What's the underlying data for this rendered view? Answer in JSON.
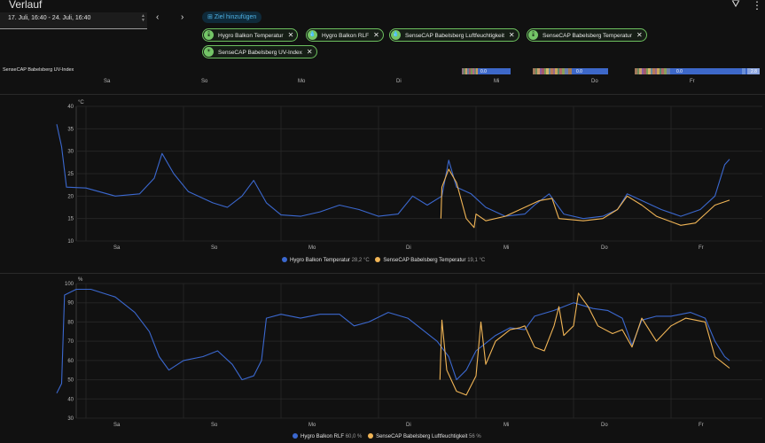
{
  "app": {
    "title": "Verlauf"
  },
  "date_range": "17. Juli, 16:40 - 24. Juli, 16:40",
  "add_target_label": "Ziel hinzufügen",
  "chips": [
    "Hygro Balkon Temperatur",
    "Hygro Balkon RLF",
    "SenseCAP Babelsberg Luftfeuchtigkeit",
    "SenseCAP Babelsberg Temperatur",
    "SenseCAP Babelsberg UV-Index"
  ],
  "uv": {
    "label": "SenseCAP Babelsberg UV-Index",
    "value_labels": [
      "0.0",
      "0.0",
      "0.0",
      "2.8"
    ]
  },
  "days": [
    "Sa",
    "So",
    "Mo",
    "Di",
    "Mi",
    "Do",
    "Fr"
  ],
  "colors": {
    "blue": "#3b68cf",
    "orange": "#f1b556",
    "chip_green": "#74c567"
  },
  "chart_data": [
    {
      "type": "line",
      "yunit": "°C",
      "ylim": [
        10,
        40
      ],
      "yticks": [
        10,
        15,
        20,
        25,
        30,
        35,
        40
      ],
      "x": [
        "Sa",
        "So",
        "Mo",
        "Di",
        "Mi",
        "Do",
        "Fr"
      ],
      "xrange_days": [
        -0.1,
        6.6
      ],
      "series": [
        {
          "name": "Hygro Balkon Temperatur",
          "current": "28,2 °C",
          "color": "#3b68cf",
          "points": [
            [
              -0.3,
              36
            ],
            [
              -0.25,
              31
            ],
            [
              -0.2,
              22
            ],
            [
              0,
              21.8
            ],
            [
              0.3,
              20
            ],
            [
              0.55,
              20.5
            ],
            [
              0.7,
              24
            ],
            [
              0.78,
              29.5
            ],
            [
              0.9,
              25
            ],
            [
              1.05,
              21
            ],
            [
              1.3,
              18.5
            ],
            [
              1.45,
              17.5
            ],
            [
              1.6,
              20
            ],
            [
              1.72,
              23.5
            ],
            [
              1.85,
              18.5
            ],
            [
              2,
              15.8
            ],
            [
              2.2,
              15.5
            ],
            [
              2.4,
              16.5
            ],
            [
              2.6,
              18
            ],
            [
              2.8,
              17
            ],
            [
              3,
              15.5
            ],
            [
              3.2,
              16
            ],
            [
              3.35,
              20
            ],
            [
              3.5,
              18
            ],
            [
              3.65,
              20
            ],
            [
              3.72,
              28
            ],
            [
              3.8,
              22
            ],
            [
              3.95,
              20.5
            ],
            [
              4.1,
              17.5
            ],
            [
              4.3,
              15.5
            ],
            [
              4.5,
              16
            ],
            [
              4.6,
              18
            ],
            [
              4.75,
              20.5
            ],
            [
              4.9,
              16
            ],
            [
              5.1,
              15
            ],
            [
              5.3,
              15.5
            ],
            [
              5.45,
              17
            ],
            [
              5.55,
              20.5
            ],
            [
              5.7,
              19
            ],
            [
              5.9,
              17
            ],
            [
              6.1,
              15.5
            ],
            [
              6.3,
              17
            ],
            [
              6.45,
              20
            ],
            [
              6.55,
              27
            ],
            [
              6.6,
              28.2
            ]
          ]
        },
        {
          "name": "SenseCAP Babelsberg Temperatur",
          "current": "19,1 °C",
          "color": "#f1b556",
          "points": [
            [
              3.64,
              15
            ],
            [
              3.65,
              22
            ],
            [
              3.72,
              26
            ],
            [
              3.8,
              23
            ],
            [
              3.85,
              19
            ],
            [
              3.9,
              15
            ],
            [
              3.98,
              13
            ],
            [
              4.0,
              16
            ],
            [
              4.1,
              14.5
            ],
            [
              4.3,
              15.5
            ],
            [
              4.5,
              17.5
            ],
            [
              4.65,
              19
            ],
            [
              4.78,
              19.5
            ],
            [
              4.85,
              15
            ],
            [
              5.1,
              14.5
            ],
            [
              5.3,
              15
            ],
            [
              5.45,
              17
            ],
            [
              5.55,
              20
            ],
            [
              5.7,
              18
            ],
            [
              5.85,
              15.5
            ],
            [
              6.1,
              13.5
            ],
            [
              6.25,
              14
            ],
            [
              6.35,
              16
            ],
            [
              6.45,
              18
            ],
            [
              6.6,
              19.1
            ]
          ]
        }
      ]
    },
    {
      "type": "line",
      "yunit": "%",
      "ylim": [
        30,
        100
      ],
      "yticks": [
        30,
        40,
        50,
        60,
        70,
        80,
        90,
        100
      ],
      "x": [
        "Sa",
        "So",
        "Mo",
        "Di",
        "Mi",
        "Do",
        "Fr"
      ],
      "xrange_days": [
        -0.1,
        6.6
      ],
      "series": [
        {
          "name": "Hygro Balkon RLF",
          "current": "60,0 %",
          "color": "#3b68cf",
          "points": [
            [
              -0.3,
              43
            ],
            [
              -0.25,
              48
            ],
            [
              -0.22,
              94
            ],
            [
              -0.1,
              97
            ],
            [
              0.05,
              97
            ],
            [
              0.3,
              93
            ],
            [
              0.5,
              85
            ],
            [
              0.65,
              75
            ],
            [
              0.75,
              62
            ],
            [
              0.85,
              55
            ],
            [
              1.0,
              60
            ],
            [
              1.2,
              62
            ],
            [
              1.35,
              65
            ],
            [
              1.5,
              58
            ],
            [
              1.6,
              50
            ],
            [
              1.72,
              52
            ],
            [
              1.8,
              60
            ],
            [
              1.85,
              82
            ],
            [
              2.0,
              84
            ],
            [
              2.2,
              82
            ],
            [
              2.4,
              84
            ],
            [
              2.6,
              84
            ],
            [
              2.75,
              78
            ],
            [
              2.9,
              80
            ],
            [
              3.1,
              85
            ],
            [
              3.3,
              82
            ],
            [
              3.45,
              76
            ],
            [
              3.6,
              70
            ],
            [
              3.72,
              62
            ],
            [
              3.8,
              50
            ],
            [
              3.9,
              55
            ],
            [
              4.0,
              65
            ],
            [
              4.2,
              73
            ],
            [
              4.35,
              77
            ],
            [
              4.5,
              76
            ],
            [
              4.6,
              83
            ],
            [
              4.8,
              86
            ],
            [
              5.0,
              90
            ],
            [
              5.2,
              87
            ],
            [
              5.35,
              86
            ],
            [
              5.5,
              82
            ],
            [
              5.6,
              68
            ],
            [
              5.7,
              81
            ],
            [
              5.85,
              83
            ],
            [
              6.0,
              83
            ],
            [
              6.2,
              85
            ],
            [
              6.35,
              82
            ],
            [
              6.45,
              70
            ],
            [
              6.55,
              62
            ],
            [
              6.6,
              60
            ]
          ]
        },
        {
          "name": "SenseCAP Babelsberg Luftfeuchtigkeit",
          "current": "56 %",
          "color": "#f1b556",
          "points": [
            [
              3.63,
              50
            ],
            [
              3.65,
              81
            ],
            [
              3.7,
              55
            ],
            [
              3.8,
              44
            ],
            [
              3.9,
              42
            ],
            [
              4.0,
              52
            ],
            [
              4.05,
              80
            ],
            [
              4.1,
              58
            ],
            [
              4.2,
              70
            ],
            [
              4.35,
              76
            ],
            [
              4.45,
              77
            ],
            [
              4.5,
              78
            ],
            [
              4.6,
              67
            ],
            [
              4.7,
              65
            ],
            [
              4.8,
              78
            ],
            [
              4.85,
              88
            ],
            [
              4.9,
              73
            ],
            [
              5.0,
              78
            ],
            [
              5.05,
              95
            ],
            [
              5.15,
              88
            ],
            [
              5.25,
              78
            ],
            [
              5.4,
              74
            ],
            [
              5.5,
              76
            ],
            [
              5.6,
              67
            ],
            [
              5.7,
              82
            ],
            [
              5.85,
              70
            ],
            [
              6.0,
              78
            ],
            [
              6.15,
              82
            ],
            [
              6.35,
              80
            ],
            [
              6.45,
              62
            ],
            [
              6.55,
              58
            ],
            [
              6.6,
              56
            ]
          ]
        }
      ]
    }
  ]
}
